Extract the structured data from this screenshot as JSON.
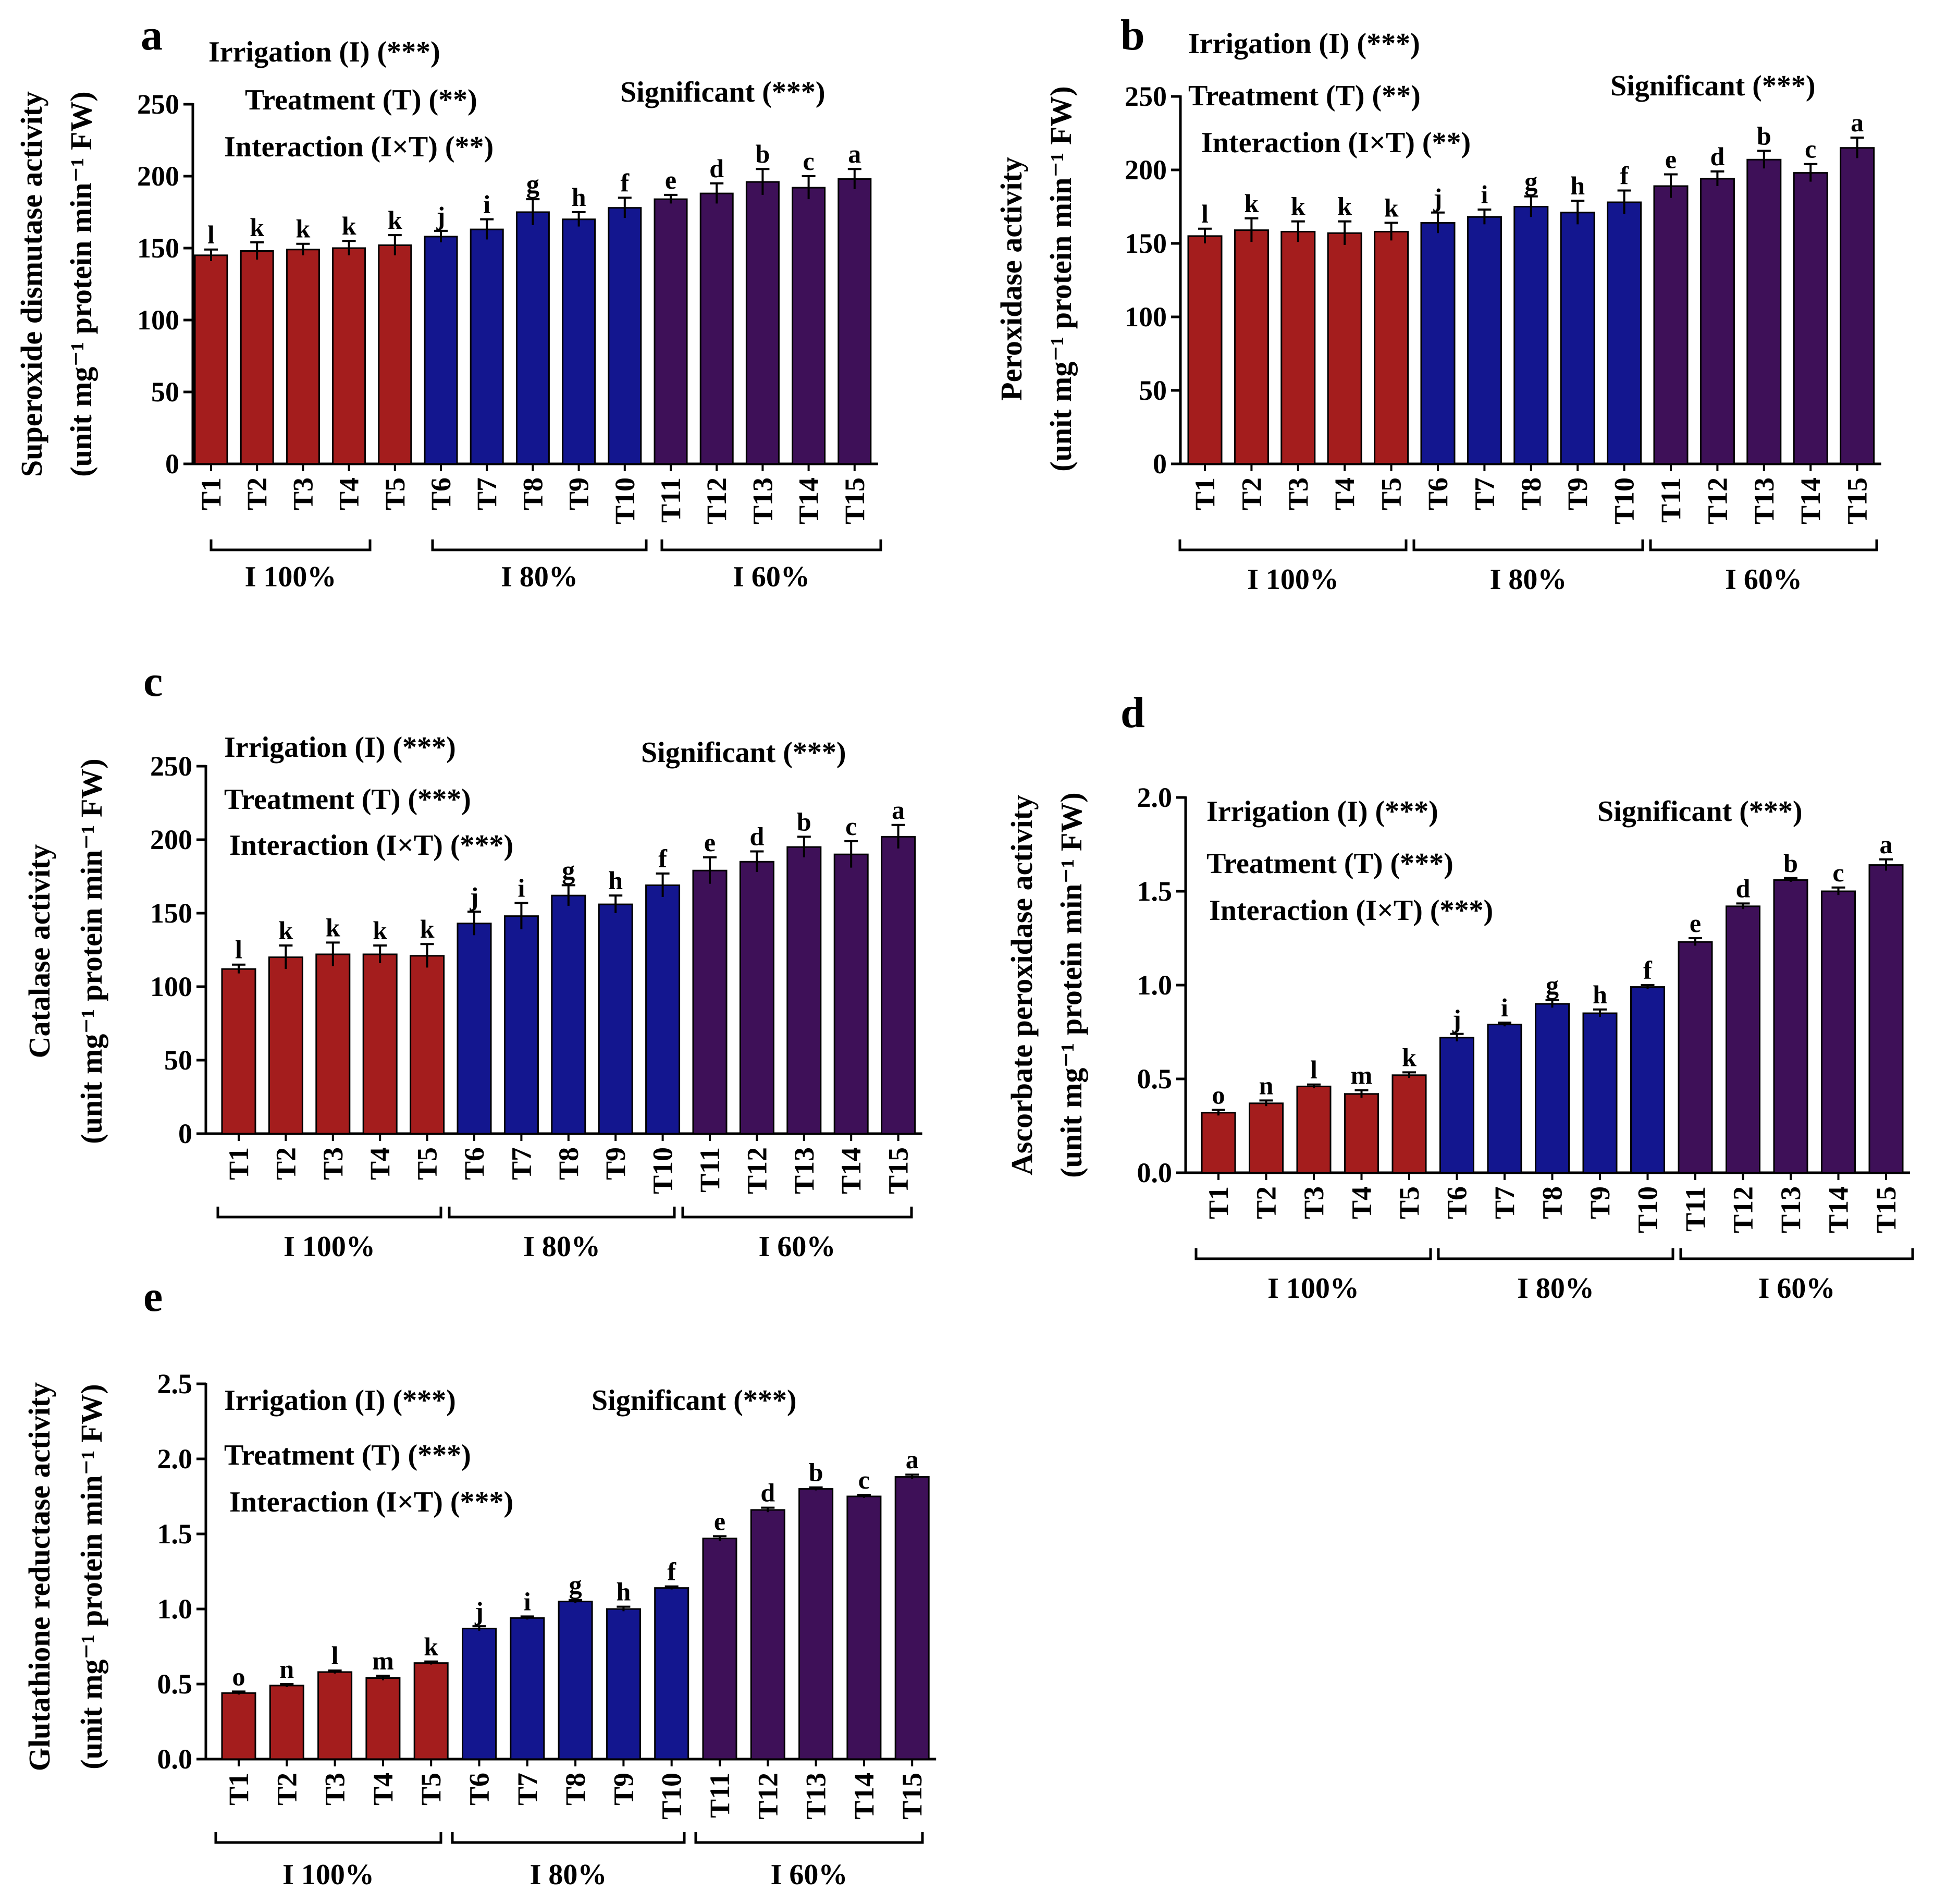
{
  "figure": {
    "categories": [
      "T1",
      "T2",
      "T3",
      "T4",
      "T5",
      "T6",
      "T7",
      "T8",
      "T9",
      "T10",
      "T11",
      "T12",
      "T13",
      "T14",
      "T15"
    ],
    "groups": [
      {
        "label": "I 100%",
        "color": "#a41d1d"
      },
      {
        "label": "I 80%",
        "color": "#13168f"
      },
      {
        "label": "I 60%",
        "color": "#3e1058"
      }
    ]
  },
  "chart_data": [
    {
      "panel": "a",
      "type": "bar",
      "ylabel_line1": "Superoxide dismutase activity",
      "ylabel_line2": "(unit mg⁻¹ protein min⁻¹ FW)",
      "ylim": [
        0,
        250
      ],
      "yticks": [
        0,
        50,
        100,
        150,
        200,
        250
      ],
      "values": [
        145,
        148,
        149,
        150,
        152,
        158,
        163,
        175,
        170,
        178,
        184,
        188,
        196,
        192,
        198
      ],
      "errors": [
        4,
        6,
        4,
        5,
        7,
        4,
        7,
        9,
        5,
        7,
        3,
        7,
        9,
        8,
        7
      ],
      "letters": [
        "l",
        "k",
        "k",
        "k",
        "k",
        "j",
        "i",
        "g",
        "h",
        "f",
        "e",
        "d",
        "b",
        "c",
        "a"
      ],
      "annotations": [
        "Irrigation (I) (***)",
        "Treatment (T) (**)",
        "Interaction (I×T) (**)",
        "Significant (***)"
      ]
    },
    {
      "panel": "b",
      "type": "bar",
      "ylabel_line1": "Peroxidase activity",
      "ylabel_line2": "(unit mg⁻¹ protein min⁻¹ FW)",
      "ylim": [
        0,
        250
      ],
      "yticks": [
        0,
        50,
        100,
        150,
        200,
        250
      ],
      "values": [
        155,
        159,
        158,
        157,
        158,
        164,
        168,
        175,
        171,
        178,
        189,
        194,
        207,
        198,
        215
      ],
      "errors": [
        5,
        8,
        7,
        8,
        6,
        7,
        5,
        7,
        8,
        8,
        8,
        5,
        6,
        6,
        7
      ],
      "letters": [
        "l",
        "k",
        "k",
        "k",
        "k",
        "j",
        "i",
        "g",
        "h",
        "f",
        "e",
        "d",
        "b",
        "c",
        "a"
      ],
      "annotations": [
        "Irrigation (I) (***)",
        "Treatment (T) (**)",
        "Interaction (I×T) (**)",
        "Significant (***)"
      ]
    },
    {
      "panel": "c",
      "type": "bar",
      "ylabel_line1": "Catalase activity",
      "ylabel_line2": "(unit mg⁻¹ protein min⁻¹ FW)",
      "ylim": [
        0,
        250
      ],
      "yticks": [
        0,
        50,
        100,
        150,
        200,
        250
      ],
      "values": [
        112,
        120,
        122,
        122,
        121,
        143,
        148,
        162,
        156,
        169,
        179,
        185,
        195,
        190,
        202
      ],
      "errors": [
        3,
        8,
        8,
        6,
        8,
        8,
        9,
        7,
        6,
        8,
        9,
        7,
        7,
        9,
        8
      ],
      "letters": [
        "l",
        "k",
        "k",
        "k",
        "k",
        "j",
        "i",
        "g",
        "h",
        "f",
        "e",
        "d",
        "b",
        "c",
        "a"
      ],
      "annotations": [
        "Irrigation (I) (***)",
        "Treatment (T) (***)",
        "Interaction (I×T) (***)",
        "Significant (***)"
      ]
    },
    {
      "panel": "d",
      "type": "bar",
      "ylabel_line1": "Ascorbate peroxidase activity",
      "ylabel_line2": "(unit mg⁻¹ protein min⁻¹ FW)",
      "ylim": [
        0,
        2.0
      ],
      "yticks": [
        "0.0",
        "0.5",
        "1.0",
        "1.5",
        "2.0"
      ],
      "values": [
        0.32,
        0.37,
        0.46,
        0.42,
        0.52,
        0.72,
        0.79,
        0.9,
        0.85,
        0.99,
        1.23,
        1.42,
        1.56,
        1.5,
        1.64
      ],
      "errors": [
        0.015,
        0.015,
        0.01,
        0.02,
        0.015,
        0.02,
        0.01,
        0.02,
        0.02,
        0.01,
        0.02,
        0.015,
        0.01,
        0.02,
        0.03
      ],
      "letters": [
        "o",
        "n",
        "l",
        "m",
        "k",
        "j",
        "i",
        "g",
        "h",
        "f",
        "e",
        "d",
        "b",
        "c",
        "a"
      ],
      "annotations": [
        "Irrigation (I) (***)",
        "Treatment (T) (***)",
        "Interaction (I×T) (***)",
        "Significant (***)"
      ]
    },
    {
      "panel": "e",
      "type": "bar",
      "ylabel_line1": "Glutathione reductase activity",
      "ylabel_line2": "(unit mg⁻¹ protein min⁻¹ FW)",
      "ylim": [
        0,
        2.5
      ],
      "yticks": [
        "0.0",
        "0.5",
        "1.0",
        "1.5",
        "2.0",
        "2.5"
      ],
      "values": [
        0.44,
        0.49,
        0.58,
        0.54,
        0.64,
        0.87,
        0.94,
        1.05,
        1.0,
        1.14,
        1.47,
        1.66,
        1.8,
        1.75,
        1.88
      ],
      "errors": [
        0.01,
        0.01,
        0.01,
        0.015,
        0.01,
        0.015,
        0.01,
        0.01,
        0.015,
        0.01,
        0.015,
        0.015,
        0.01,
        0.01,
        0.015
      ],
      "letters": [
        "o",
        "n",
        "l",
        "m",
        "k",
        "j",
        "i",
        "g",
        "h",
        "f",
        "e",
        "d",
        "b",
        "c",
        "a"
      ],
      "annotations": [
        "Irrigation (I) (***)",
        "Treatment (T) (***)",
        "Interaction (I×T) (***)",
        "Significant (***)"
      ]
    }
  ]
}
